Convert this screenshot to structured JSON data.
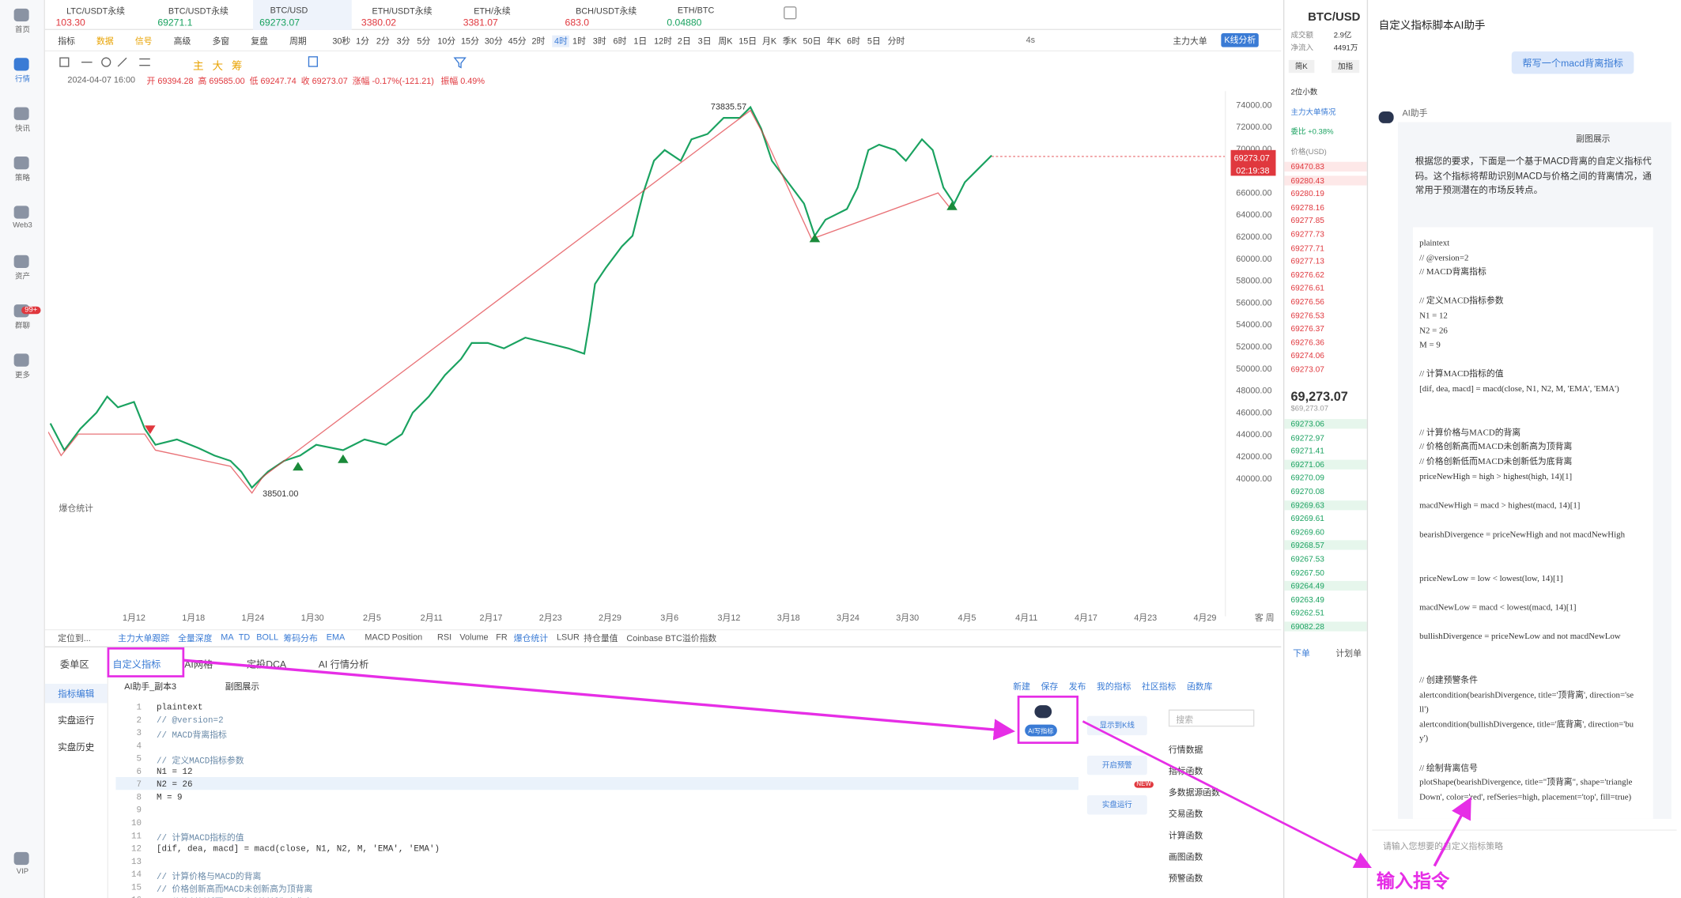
{
  "sidebar": [
    "首页",
    "行情",
    "快讯",
    "策略",
    "Web3",
    "资产",
    "群聊",
    "更多",
    "VIP"
  ],
  "badge": "99+",
  "tabs": [
    {
      "name": "LTC/USDT永续",
      "price": "103.30",
      "dir": "down"
    },
    {
      "name": "BTC/USDT永续",
      "price": "69271.1",
      "dir": "up"
    },
    {
      "name": "BTC/USD",
      "price": "69273.07",
      "dir": "up",
      "active": true
    },
    {
      "name": "ETH/USDT永续",
      "price": "3380.02",
      "dir": "down"
    },
    {
      "name": "ETH/永续",
      "price": "3381.07",
      "dir": "down"
    },
    {
      "name": "BCH/USDT永续",
      "price": "683.0",
      "dir": "down"
    },
    {
      "name": "ETH/BTC",
      "price": "0.04880",
      "dir": "up"
    }
  ],
  "toolbar": [
    "指标",
    "数据",
    "信号",
    "高级",
    "多窗",
    "复盘",
    "周期"
  ],
  "periods": [
    "30秒",
    "1分",
    "2分",
    "3分",
    "5分",
    "10分",
    "15分",
    "30分",
    "45分",
    "2时",
    "4时",
    "1时",
    "3时",
    "6时",
    "1日",
    "12时",
    "2日",
    "3日",
    "周K",
    "15日",
    "月K",
    "季K",
    "50日",
    "年K",
    "6时",
    "5日",
    "分时"
  ],
  "period_active": 10,
  "toolbar_right": [
    "4s",
    "主力大单",
    "K线分析"
  ],
  "drawing_tools": [
    "主",
    "大",
    "筹"
  ],
  "ohlc": [
    "2024-04-07 16:00",
    "开 69394.28",
    "高 69585.00",
    "低 69247.74",
    "收 69273.07",
    "涨幅 -0.17%(-121.21)",
    "振幅 0.49%"
  ],
  "price_axis": [
    "76000.00",
    "74000.00",
    "72000.00",
    "70000.00",
    "68000.00",
    "66000.00",
    "64000.00",
    "62000.00",
    "60000.00",
    "58000.00",
    "56000.00",
    "54000.00",
    "52000.00",
    "50000.00",
    "48000.00",
    "46000.00",
    "44000.00",
    "42000.00",
    "40000.00"
  ],
  "high_label": "73835.57",
  "low_label": "38501.00",
  "last_price": "69273.07",
  "countdown": "02:19:38",
  "liq_label": "爆仓统计",
  "time_axis": [
    "1月12",
    "1月18",
    "1月24",
    "1月30",
    "2月5",
    "2月11",
    "2月17",
    "2月23",
    "2月29",
    "3月6",
    "3月12",
    "3月18",
    "3月24",
    "3月30",
    "4月5",
    "4月11",
    "4月17",
    "4月23",
    "4月29",
    "客 周"
  ],
  "indicators": [
    "定位到...",
    "主力大单跟踪",
    "全量深度",
    "MA",
    "TD",
    "BOLL",
    "筹码分布",
    "EMA",
    "MACD",
    "Position",
    "RSI",
    "Volume",
    "FR",
    "爆仓统计",
    "LSUR",
    "持仓量值",
    "Coinbase BTC溢价指数"
  ],
  "bottom_tabs": [
    "委单区",
    "自定义指标",
    "AI网格",
    "定投DCA",
    "AI 行情分析"
  ],
  "bottom_active": 1,
  "bottom_nav": [
    "指标编辑",
    "实盘运行",
    "实盘历史"
  ],
  "file_name": "AI助手_副本3",
  "display_mode": "副图展示",
  "editor_actions": [
    "新建",
    "保存",
    "发布",
    "我的指标",
    "社区指标",
    "函数库"
  ],
  "code": [
    {
      "n": 1,
      "text": "plaintext"
    },
    {
      "n": 2,
      "text": "// @version=2"
    },
    {
      "n": 3,
      "text": "// MACD背离指标"
    },
    {
      "n": 4
    },
    {
      "n": 5,
      "text": "// 定义MACD指标参数"
    },
    {
      "n": 6,
      "text": "N1 = 12"
    },
    {
      "n": 7,
      "text": "N2 = 26"
    },
    {
      "n": 8,
      "text": "M = 9"
    },
    {
      "n": 9
    },
    {
      "n": 10
    },
    {
      "n": 11,
      "text": "// 计算MACD指标的值"
    },
    {
      "n": 12,
      "text": "[dif, dea, macd] = macd(close, N1, N2, M, 'EMA', 'EMA')"
    },
    {
      "n": 13
    },
    {
      "n": 14,
      "text": "// 计算价格与MACD的背离"
    },
    {
      "n": 15,
      "text": "// 价格创新高而MACD未创新高为顶背离"
    },
    {
      "n": 16,
      "text": "// 价格创新低而MACD未创新低为底背离"
    }
  ],
  "ai_button": "AI写指标",
  "side_buttons": [
    "显示到K线",
    "开启预警",
    "实盘运行"
  ],
  "new_badge": "NEW",
  "search": "搜索",
  "functions": [
    "行情数据",
    "指标函数",
    "多数据源函数",
    "交易函数",
    "计算函数",
    "画图函数",
    "预警函数"
  ],
  "orderbook": {
    "symbol": "BTC/USD",
    "turnover": "成交额",
    "turnover_value": "2.9亿",
    "inflow": "净流入",
    "inflow_value": "4491万",
    "buttons": [
      "简K",
      "加指"
    ],
    "decimals": "2位小数",
    "big_orders": "主力大单情况",
    "ratio": "委比 +0.38%",
    "price_header": "价格(USD)",
    "asks": [
      "69470.83",
      "69280.43",
      "69280.19",
      "69278.16",
      "69277.85",
      "69277.73",
      "69277.71",
      "69277.13",
      "69276.62",
      "69276.61",
      "69276.56",
      "69276.53",
      "69276.37",
      "69276.36",
      "69274.06",
      "69273.07"
    ],
    "mid": "69,273.07",
    "mid_usd": "$69,273.07",
    "bids": [
      "69273.06",
      "69272.97",
      "69271.41",
      "69271.06",
      "69270.09",
      "69270.08",
      "69269.63",
      "69269.61",
      "69269.60",
      "69268.57",
      "69267.53",
      "69267.50",
      "69264.49",
      "69263.49",
      "69262.51",
      "69082.28"
    ],
    "tabs": [
      "下单",
      "计划单"
    ]
  },
  "ai": {
    "title": "自定义指标脚本AI助手",
    "user_msg": "帮写一个macd背离指标",
    "bot_name": "AI助手",
    "mode": "副图展示",
    "intro": "根据您的要求，下面是一个基于MACD背离的自定义指标代码。这个指标将帮助识别MACD与价格之间的背离情况，通常用于预测潜在的市场反转点。",
    "code": [
      [
        "plaintext",
        "// @version=2",
        "// MACD背离指标"
      ],
      [
        "// 定义MACD指标参数",
        "N1 = 12",
        "N2 = 26",
        "M = 9"
      ],
      [
        "// 计算MACD指标的值",
        "[dif, dea, macd] = macd(close, N1, N2, M, 'EMA', 'EMA')"
      ],
      [
        "// 计算价格与MACD的背离",
        "// 价格创新高而MACD未创新高为顶背离",
        "// 价格创新低而MACD未创新低为底背离",
        "priceNewHigh = high > highest(high, 14)[1]",
        "macdNewHigh = macd > highest(macd, 14)[1]",
        "bearishDivergence = priceNewHigh and not macdNewHigh"
      ],
      [
        "priceNewLow = low < lowest(low, 14)[1]",
        "macdNewLow = macd < lowest(macd, 14)[1]",
        "bullishDivergence = priceNewLow and not macdNewLow"
      ],
      [
        "// 创建预警条件",
        "alertcondition(bearishDivergence, title='顶背离', direction='sell')",
        "alertcondition(bullishDivergence, title='底背离', direction='buy')"
      ],
      [
        "// 绘制背离信号",
        "plotShape(bearishDivergence, title=\"顶背离\", shape='triangleDown', color='red', refSeries=high, placement='top', fill=true)"
      ]
    ],
    "placeholder": "请输入您想要的自定义指标策略",
    "annotation": "输入指令"
  }
}
